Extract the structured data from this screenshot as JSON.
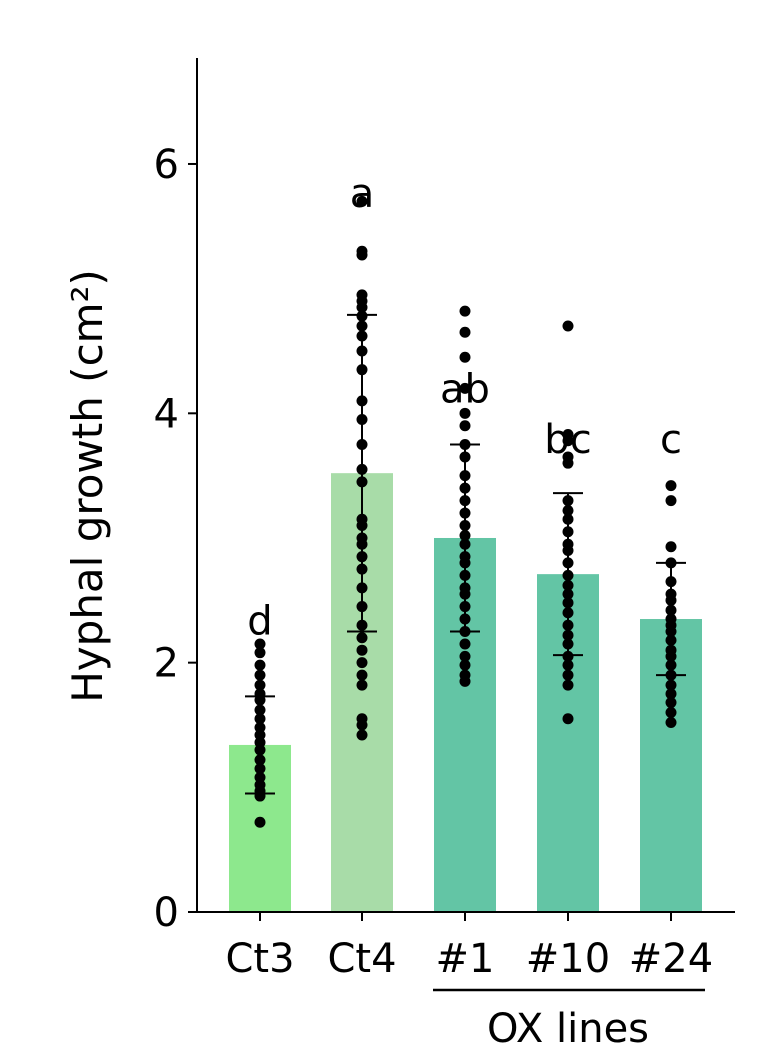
{
  "chart_data": {
    "type": "bar",
    "ylabel": "Hyphal growth (cm²)",
    "ylim": [
      0,
      6.85
    ],
    "yticks": [
      0,
      2,
      4,
      6
    ],
    "grid": false,
    "categories": [
      "Ct3",
      "Ct4",
      "#1",
      "#10",
      "#24"
    ],
    "values": [
      1.34,
      3.52,
      3.0,
      2.71,
      2.35
    ],
    "error_low": [
      0.95,
      2.25,
      2.25,
      2.06,
      1.9
    ],
    "error_high": [
      1.73,
      4.79,
      3.75,
      3.36,
      2.8
    ],
    "significance_letters": [
      "d",
      "a",
      "ab",
      "bc",
      "c"
    ],
    "group_label": "OX lines",
    "colors": [
      "#8de88d",
      "#a8dca8",
      "#63c5a5",
      "#63c5a5",
      "#63c5a5"
    ],
    "points": [
      [
        2.15,
        2.08,
        1.98,
        1.9,
        1.82,
        1.75,
        1.7,
        1.62,
        1.55,
        1.48,
        1.42,
        1.36,
        1.3,
        1.22,
        1.15,
        1.08,
        1.02,
        0.97,
        0.93,
        0.72
      ],
      [
        5.7,
        5.3,
        5.27,
        4.95,
        4.9,
        4.85,
        4.78,
        4.7,
        4.62,
        4.5,
        4.35,
        4.1,
        3.95,
        3.75,
        3.55,
        3.45,
        3.15,
        3.1,
        3.0,
        2.95,
        2.85,
        2.75,
        2.6,
        2.45,
        2.3,
        2.2,
        2.1,
        2.0,
        1.9,
        1.82,
        1.55,
        1.5,
        1.42
      ],
      [
        4.82,
        4.65,
        4.45,
        4.2,
        4.0,
        3.9,
        3.75,
        3.65,
        3.5,
        3.4,
        3.3,
        3.2,
        3.1,
        3.02,
        2.95,
        2.85,
        2.8,
        2.7,
        2.6,
        2.55,
        2.45,
        2.35,
        2.25,
        2.15,
        2.05,
        1.98,
        1.9,
        1.85
      ],
      [
        4.7,
        3.83,
        3.78,
        3.65,
        3.6,
        3.3,
        3.22,
        3.15,
        3.05,
        2.95,
        2.9,
        2.8,
        2.7,
        2.62,
        2.55,
        2.48,
        2.4,
        2.3,
        2.22,
        2.15,
        2.05,
        1.98,
        1.9,
        1.82,
        1.55
      ],
      [
        3.42,
        3.3,
        2.93,
        2.8,
        2.65,
        2.55,
        2.5,
        2.42,
        2.35,
        2.3,
        2.25,
        2.18,
        2.1,
        2.05,
        1.98,
        1.9,
        1.82,
        1.75,
        1.68,
        1.6,
        1.52
      ]
    ]
  }
}
